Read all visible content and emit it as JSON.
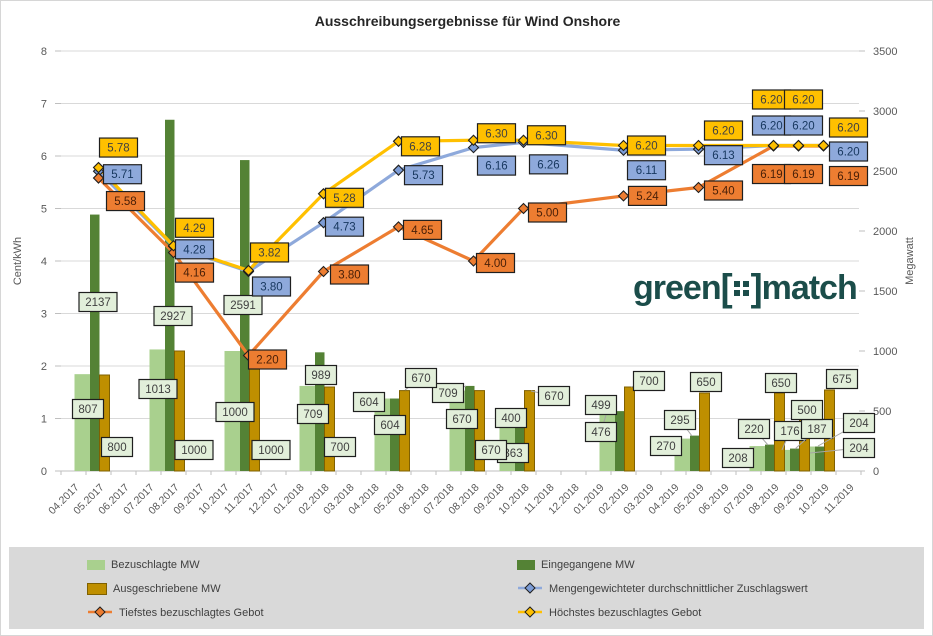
{
  "logo": {
    "prefix": "green",
    "suffix": "match",
    "color": "#1B4D4A"
  },
  "chart_data": {
    "type": "combo-bar-line",
    "title": "Ausschreibungsergebnisse für Wind Onshore",
    "x_categories": [
      "04.2017",
      "05.2017",
      "06.2017",
      "07.2017",
      "08.2017",
      "09.2017",
      "10.2017",
      "11.2017",
      "12.2017",
      "01.2018",
      "02.2018",
      "03.2018",
      "04.2018",
      "05.2018",
      "06.2018",
      "07.2018",
      "08.2018",
      "09.2018",
      "10.2018",
      "11.2018",
      "12.2018",
      "01.2019",
      "02.2019",
      "03.2019",
      "04.2019",
      "05.2019",
      "06.2019",
      "07.2019",
      "08.2019",
      "09.2019",
      "10.2019",
      "11.2019"
    ],
    "auction_months": [
      "05.2017",
      "08.2017",
      "11.2017",
      "02.2018",
      "05.2018",
      "08.2018",
      "10.2018",
      "02.2019",
      "05.2019",
      "08.2019",
      "09.2019",
      "10.2019"
    ],
    "left_axis": {
      "label": "Cent/kWh",
      "min": 0,
      "max": 8,
      "step": 1,
      "ticks": [
        0,
        1,
        2,
        3,
        4,
        5,
        6,
        7,
        8
      ]
    },
    "right_axis": {
      "label": "Megawatt",
      "min": 0,
      "max": 3500,
      "step": 500,
      "ticks": [
        0,
        500,
        1000,
        1500,
        2000,
        2500,
        3000,
        3500
      ]
    },
    "grid": true,
    "legend_position": "bottom",
    "bar_label_fill": "#E2EFDA",
    "bar_series": [
      {
        "name": "Bezuschlagte MW",
        "color": "#A9D08E",
        "values": [
          807,
          1013,
          1000,
          709,
          604,
          670,
          363,
          476,
          270,
          208,
          176,
          204
        ]
      },
      {
        "name": "Eingegangene MW",
        "color": "#548235",
        "values": [
          2137,
          2927,
          2591,
          989,
          604,
          709,
          400,
          499,
          295,
          220,
          187,
          204
        ]
      },
      {
        "name": "Ausgeschriebene MW",
        "color": "#BF8F00",
        "border": "#7F6000",
        "values": [
          800,
          1000,
          1000,
          700,
          670,
          670,
          670,
          700,
          650,
          650,
          500,
          675
        ]
      }
    ],
    "line_series": [
      {
        "name": "Mengengewichteter durchschnittlicher Zuschlagswert",
        "color": "#8EA9DB",
        "marker_color": "#7C9CD6",
        "text_color": "#17375E",
        "marker": "diamond",
        "values": [
          5.71,
          4.28,
          3.8,
          4.73,
          5.73,
          6.16,
          6.26,
          6.11,
          6.13,
          6.2,
          6.2,
          6.2
        ]
      },
      {
        "name": "Tiefstes bezuschlagtes Gebot",
        "color": "#ED7D31",
        "marker_color": "#ED7D31",
        "text_color": "#4A2008",
        "marker": "diamond",
        "values": [
          5.58,
          4.16,
          2.2,
          3.8,
          4.65,
          4.0,
          5.0,
          5.24,
          5.4,
          6.19,
          6.19,
          6.19
        ]
      },
      {
        "name": "Höchstes bezuschlagtes Gebot",
        "color": "#FFC000",
        "marker_color": "#FFC000",
        "text_color": "#404040",
        "marker": "diamond",
        "values": [
          5.78,
          4.29,
          3.82,
          5.28,
          6.28,
          6.3,
          6.3,
          6.2,
          6.2,
          6.2,
          6.2,
          6.2
        ]
      }
    ]
  }
}
